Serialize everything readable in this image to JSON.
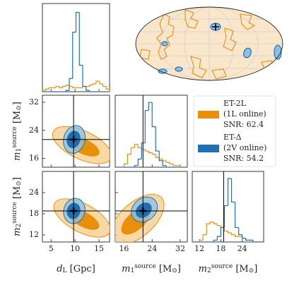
{
  "chart_data": {
    "type": "corner",
    "series": [
      {
        "name": "ET-2L",
        "legend_lines": [
          "(1L online)",
          "SNR: 62.4"
        ],
        "color": "#e8900a",
        "light_color": "#f6cf8f"
      },
      {
        "name": "ET-Δ",
        "legend_lines": [
          "(2V online)",
          "SNR: 54.2"
        ],
        "color": "#1f6fb4",
        "light_color": "#8fc0e3"
      }
    ],
    "parameters": [
      {
        "label": [
          {
            "text": "d"
          },
          {
            "text": "L",
            "pos": "sub"
          },
          {
            "text": " [Gpc]"
          }
        ],
        "lim": [
          3.2,
          17.2
        ],
        "ticks": [
          5,
          10,
          15
        ],
        "truth": 9.7
      },
      {
        "label": [
          {
            "text": "m"
          },
          {
            "text": "1",
            "pos": "sub"
          },
          {
            "text": "source",
            "pos": "sup"
          },
          {
            "text": " [M"
          },
          {
            "text": "⊙",
            "pos": "sub"
          },
          {
            "text": "]"
          }
        ],
        "lim": [
          13.5,
          34
        ],
        "ticks": [
          16,
          24,
          32
        ],
        "truth": 21.4
      },
      {
        "label": [
          {
            "text": "m"
          },
          {
            "text": "2",
            "pos": "sub"
          },
          {
            "text": "source",
            "pos": "sup"
          },
          {
            "text": " [M"
          },
          {
            "text": "⊙",
            "pos": "sub"
          },
          {
            "text": "]"
          }
        ],
        "lim": [
          10,
          30
        ],
        "ticks": [
          12,
          18,
          24
        ],
        "truth": 18.8
      }
    ],
    "histograms": [
      {
        "param": 0,
        "bins": [
          3.2,
          3.9,
          4.6,
          5.3,
          6.0,
          6.7,
          7.4,
          8.1,
          8.8,
          9.5,
          10.2,
          10.9,
          11.6,
          12.3,
          13.0,
          13.7,
          14.4,
          15.1,
          15.8,
          16.5,
          17.2
        ],
        "values": [
          [
            1,
            2,
            3,
            3,
            4,
            3,
            4,
            5,
            4,
            3,
            3,
            3,
            4,
            4,
            5,
            6,
            8,
            6,
            4,
            2
          ],
          [
            0,
            0,
            0,
            0,
            0,
            0,
            0,
            1,
            10,
            45,
            60,
            20,
            4,
            1,
            0,
            0,
            0,
            0,
            0,
            0
          ]
        ]
      },
      {
        "param": 1,
        "bins": [
          14,
          15,
          16,
          17,
          18,
          19,
          20,
          21,
          22,
          23,
          24,
          25,
          26,
          27,
          28,
          29,
          30,
          31,
          32,
          33
        ],
        "values": [
          [
            0,
            0,
            2,
            8,
            12,
            14,
            12,
            11,
            10,
            9,
            8,
            6,
            5,
            4,
            3,
            2,
            1,
            1,
            0
          ],
          [
            0,
            0,
            0,
            0,
            0,
            1,
            5,
            15,
            35,
            40,
            25,
            10,
            4,
            1,
            0,
            0,
            0,
            0,
            0
          ]
        ]
      },
      {
        "param": 2,
        "bins": [
          10,
          11,
          12,
          13,
          14,
          15,
          16,
          17,
          18,
          19,
          20,
          21,
          22,
          23,
          24,
          25,
          26,
          27,
          28,
          29,
          30
        ],
        "values": [
          [
            0,
            0,
            1,
            4,
            10,
            11,
            10,
            9,
            8,
            6,
            5,
            4,
            3,
            3,
            2,
            1,
            1,
            0,
            0,
            0
          ],
          [
            0,
            0,
            0,
            0,
            0,
            0,
            1,
            3,
            8,
            20,
            35,
            22,
            8,
            4,
            2,
            1,
            1,
            0,
            0,
            0
          ]
        ]
      }
    ]
  }
}
